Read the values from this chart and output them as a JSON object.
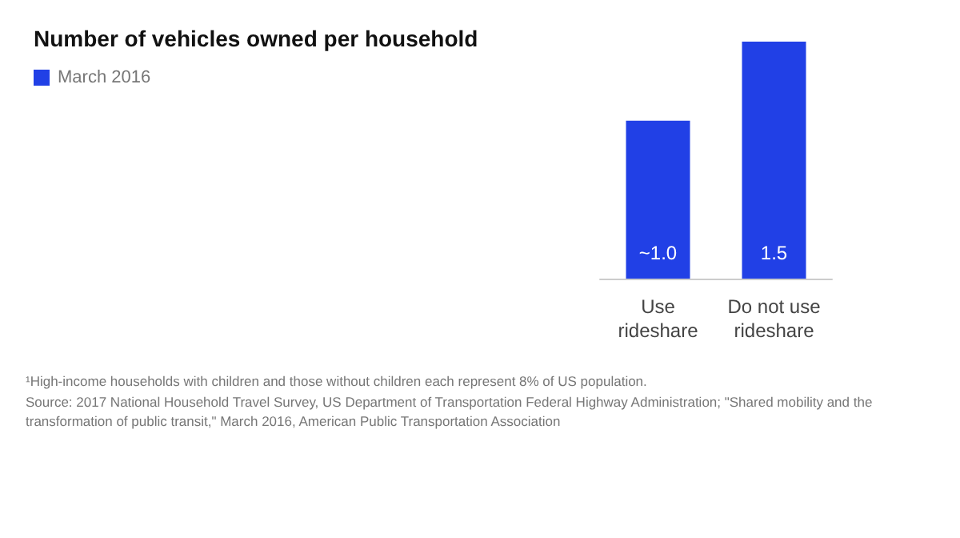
{
  "chart_data": {
    "type": "bar",
    "title": "Number of vehicles owned per household",
    "categories": [
      "Use\nrideshare",
      "Do not use\nrideshare"
    ],
    "series": [
      {
        "name": "March 2016",
        "color": "#2140e6",
        "values": [
          1.0,
          1.5
        ],
        "value_labels": [
          "~1.0",
          "1.5"
        ]
      }
    ],
    "legend": "top left",
    "annotations": [
      "¹High-income households with children and those without children each represent 8% of US population.",
      "Source: 2017 National Household Travel Survey, US Department of Transportation Federal Highway Administration; \"Shared mobility and the transformation of public transit,\" March 2016, American Public Transportation Association"
    ]
  }
}
